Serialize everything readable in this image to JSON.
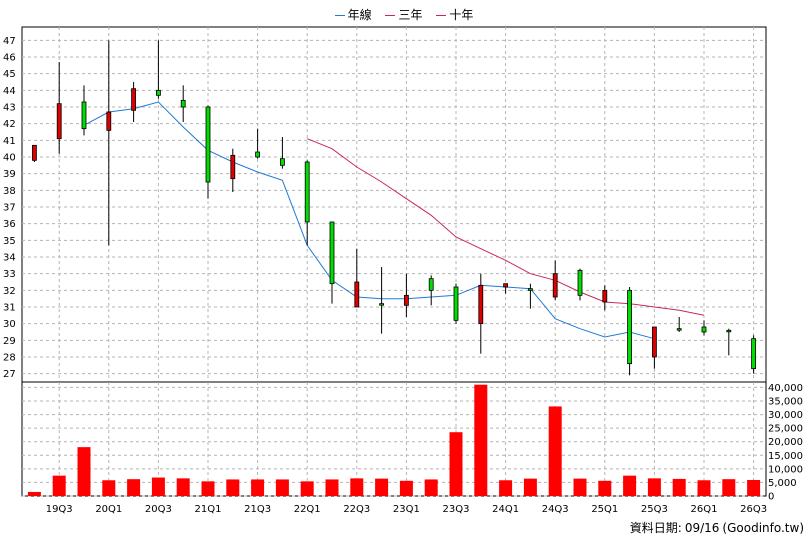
{
  "legend": [
    {
      "label": "年線",
      "color": "#1e7bd6"
    },
    {
      "label": "三年",
      "color": "#c8285a"
    },
    {
      "label": "十年",
      "color": "#c8285a"
    }
  ],
  "footer": {
    "date_label": "資料日期:",
    "date": "09/16",
    "source": "(Goodinfo.tw)"
  },
  "chart_data": [
    {
      "type": "candlestick",
      "ylim": [
        26.5,
        47.8
      ],
      "yticks": [
        27,
        28,
        29,
        30,
        31,
        32,
        33,
        34,
        35,
        36,
        37,
        38,
        39,
        40,
        41,
        42,
        43,
        44,
        45,
        46,
        47
      ],
      "xtick_labels": [
        {
          "label": "19Q3",
          "index": 1
        },
        {
          "label": "20Q1",
          "index": 3
        },
        {
          "label": "20Q3",
          "index": 5
        },
        {
          "label": "21Q1",
          "index": 7
        },
        {
          "label": "21Q3",
          "index": 9
        },
        {
          "label": "22Q1",
          "index": 11
        },
        {
          "label": "22Q3",
          "index": 13
        },
        {
          "label": "23Q1",
          "index": 15
        },
        {
          "label": "23Q3",
          "index": 17
        },
        {
          "label": "24Q1",
          "index": 19
        },
        {
          "label": "24Q3",
          "index": 21
        },
        {
          "label": "25Q1",
          "index": 23
        },
        {
          "label": "25Q3",
          "index": 25
        },
        {
          "label": "26Q1",
          "index": 27
        },
        {
          "label": "26Q3",
          "index": 29
        }
      ],
      "candles": [
        {
          "o": 40.7,
          "c": 39.8,
          "h": 40.7,
          "l": 39.7
        },
        {
          "o": 43.2,
          "c": 41.1,
          "h": 45.7,
          "l": 40.2
        },
        {
          "o": 41.7,
          "c": 43.3,
          "h": 44.3,
          "l": 41.3
        },
        {
          "o": 42.7,
          "c": 41.6,
          "h": 47.0,
          "l": 34.7
        },
        {
          "o": 44.1,
          "c": 42.8,
          "h": 44.5,
          "l": 42.1
        },
        {
          "o": 43.7,
          "c": 44.0,
          "h": 47.0,
          "l": 43.5
        },
        {
          "o": 43.0,
          "c": 43.4,
          "h": 44.3,
          "l": 42.1
        },
        {
          "o": 38.5,
          "c": 43.0,
          "h": 43.1,
          "l": 37.5
        },
        {
          "o": 40.1,
          "c": 38.7,
          "h": 40.5,
          "l": 37.9
        },
        {
          "o": 40.0,
          "c": 40.3,
          "h": 41.7,
          "l": 39.9
        },
        {
          "o": 39.5,
          "c": 39.9,
          "h": 41.2,
          "l": 39.3
        },
        {
          "o": 36.1,
          "c": 39.7,
          "h": 39.8,
          "l": 34.7
        },
        {
          "o": 32.4,
          "c": 36.1,
          "h": 36.1,
          "l": 31.2
        },
        {
          "o": 32.5,
          "c": 31.0,
          "h": 34.5,
          "l": 31.0
        },
        {
          "o": 31.2,
          "c": 31.2,
          "h": 33.4,
          "l": 29.4
        },
        {
          "o": 31.7,
          "c": 31.1,
          "h": 33.0,
          "l": 30.4
        },
        {
          "o": 32.0,
          "c": 32.7,
          "h": 32.9,
          "l": 31.1
        },
        {
          "o": 30.2,
          "c": 32.2,
          "h": 32.4,
          "l": 30.0
        },
        {
          "o": 32.3,
          "c": 30.0,
          "h": 33.0,
          "l": 28.2
        },
        {
          "o": 32.4,
          "c": 32.2,
          "h": 32.4,
          "l": 31.8
        },
        {
          "o": 32.0,
          "c": 32.1,
          "h": 32.4,
          "l": 30.9
        },
        {
          "o": 33.0,
          "c": 31.6,
          "h": 33.8,
          "l": 31.4
        },
        {
          "o": 31.7,
          "c": 33.2,
          "h": 33.3,
          "l": 31.4
        },
        {
          "o": 32.0,
          "c": 31.3,
          "h": 32.3,
          "l": 30.8
        },
        {
          "o": 27.6,
          "c": 32.0,
          "h": 32.2,
          "l": 26.9
        },
        {
          "o": 29.8,
          "c": 28.0,
          "h": 29.8,
          "l": 27.3
        },
        {
          "o": 29.7,
          "c": 29.7,
          "h": 30.4,
          "l": 29.5
        },
        {
          "o": 29.5,
          "c": 29.8,
          "h": 30.2,
          "l": 29.3
        },
        {
          "o": 29.6,
          "c": 29.6,
          "h": 29.7,
          "l": 28.1
        },
        {
          "o": 27.3,
          "c": 29.1,
          "h": 29.3,
          "l": 27.0
        }
      ],
      "series": [
        {
          "name": "年線",
          "color": "#1e7bd6",
          "start_index": 2,
          "values": [
            41.9,
            42.7,
            42.9,
            43.3,
            41.8,
            40.4,
            39.7,
            39.1,
            38.6,
            34.7,
            32.6,
            31.6,
            31.5,
            31.5,
            31.6,
            31.7,
            32.3,
            32.2,
            32.1,
            30.3,
            29.7,
            29.2,
            29.5,
            29.1
          ]
        },
        {
          "name": "三年",
          "color": "#c8285a",
          "start_index": 11,
          "values": [
            41.1,
            40.5,
            39.4,
            38.5,
            37.5,
            36.5,
            35.2,
            34.5,
            33.8,
            33.0,
            32.6,
            31.9,
            31.3,
            31.2,
            31.0,
            30.8,
            30.5
          ]
        }
      ]
    },
    {
      "type": "bar",
      "ylim": [
        0,
        42000
      ],
      "yticks": [
        0,
        5000,
        10000,
        15000,
        20000,
        25000,
        30000,
        35000,
        40000
      ],
      "ytick_labels": [
        "0",
        "5,000",
        "10,000",
        "15,000",
        "20,000",
        "25,000",
        "30,000",
        "35,000",
        "40,000"
      ],
      "color": "#ff0000",
      "values": [
        1500,
        7500,
        18000,
        5800,
        6200,
        6800,
        6500,
        5400,
        6100,
        6100,
        6100,
        5400,
        6100,
        6500,
        6400,
        5600,
        6100,
        23500,
        41000,
        5800,
        6400,
        33000,
        6400,
        5600,
        7500,
        6500,
        6300,
        5800,
        6200,
        5900
      ]
    }
  ]
}
